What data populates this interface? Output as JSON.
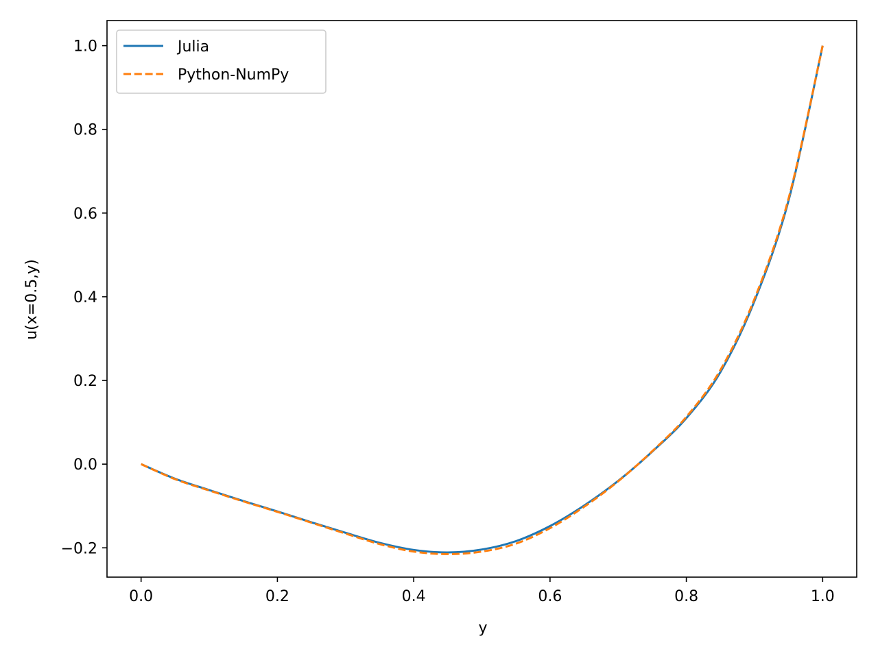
{
  "chart_data": {
    "type": "line",
    "xlabel": "y",
    "ylabel": "u(x=0.5,y)",
    "xlim": [
      -0.05,
      1.05
    ],
    "ylim": [
      -0.27,
      1.06
    ],
    "xticks": [
      0.0,
      0.2,
      0.4,
      0.6,
      0.8,
      1.0
    ],
    "xtick_labels": [
      "0.0",
      "0.2",
      "0.4",
      "0.6",
      "0.8",
      "1.0"
    ],
    "yticks": [
      -0.2,
      0.0,
      0.2,
      0.4,
      0.6,
      0.8,
      1.0
    ],
    "ytick_labels": [
      "−0.2",
      "0.0",
      "0.2",
      "0.4",
      "0.6",
      "0.8",
      "1.0"
    ],
    "grid": false,
    "legend": "top-left",
    "series": [
      {
        "name": "Julia",
        "color": "#1f77b4",
        "style": "solid",
        "x": [
          0.0,
          0.05,
          0.1,
          0.15,
          0.2,
          0.25,
          0.3,
          0.35,
          0.4,
          0.45,
          0.5,
          0.55,
          0.6,
          0.65,
          0.7,
          0.75,
          0.8,
          0.85,
          0.9,
          0.95,
          1.0
        ],
        "y": [
          0.0,
          -0.035,
          -0.062,
          -0.088,
          -0.113,
          -0.139,
          -0.164,
          -0.188,
          -0.205,
          -0.211,
          -0.204,
          -0.184,
          -0.148,
          -0.099,
          -0.04,
          0.03,
          0.11,
          0.22,
          0.39,
          0.63,
          1.0
        ]
      },
      {
        "name": "Python-NumPy",
        "color": "#ff7f0e",
        "style": "dashed",
        "x": [
          0.0,
          0.05,
          0.1,
          0.15,
          0.2,
          0.25,
          0.3,
          0.35,
          0.4,
          0.45,
          0.5,
          0.55,
          0.6,
          0.65,
          0.7,
          0.75,
          0.8,
          0.85,
          0.9,
          0.95,
          1.0
        ],
        "y": [
          0.0,
          -0.036,
          -0.063,
          -0.089,
          -0.114,
          -0.14,
          -0.166,
          -0.191,
          -0.209,
          -0.215,
          -0.209,
          -0.19,
          -0.153,
          -0.102,
          -0.041,
          0.031,
          0.113,
          0.225,
          0.395,
          0.635,
          1.0
        ]
      }
    ]
  }
}
